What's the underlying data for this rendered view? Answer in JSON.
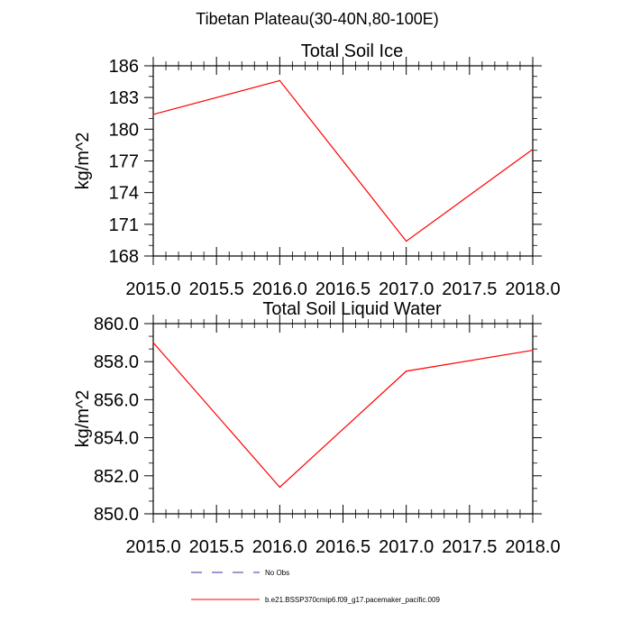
{
  "title": "Tibetan Plateau(30-40N,80-100E)",
  "chart_data": [
    {
      "type": "line",
      "title": "Total Soil Ice",
      "xlabel": "",
      "ylabel": "kg/m^2",
      "xlim": [
        2015.0,
        2018.0
      ],
      "ylim": [
        168,
        186
      ],
      "xticks": [
        2015.0,
        2015.5,
        2016.0,
        2016.5,
        2017.0,
        2017.5,
        2018.0
      ],
      "xtick_labels": [
        "2015.0",
        "2015.5",
        "2016.0",
        "2016.5",
        "2017.0",
        "2017.5",
        "2018.0"
      ],
      "yticks": [
        168,
        171,
        174,
        177,
        180,
        183,
        186
      ],
      "ytick_labels": [
        "168",
        "171",
        "174",
        "177",
        "180",
        "183",
        "186"
      ],
      "grid": false,
      "series": [
        {
          "name": "b.e21.BSSP370cmip6.f09_g17.pacemaker_pacific.009",
          "color": "#ff0000",
          "x": [
            2015.0,
            2016.0,
            2017.0,
            2018.0
          ],
          "values": [
            181.4,
            184.6,
            169.4,
            178.1
          ]
        }
      ]
    },
    {
      "type": "line",
      "title": "Total Soil Liquid Water",
      "xlabel": "",
      "ylabel": "kg/m^2",
      "xlim": [
        2015.0,
        2018.0
      ],
      "ylim": [
        850.0,
        860.0
      ],
      "xticks": [
        2015.0,
        2015.5,
        2016.0,
        2016.5,
        2017.0,
        2017.5,
        2018.0
      ],
      "xtick_labels": [
        "2015.0",
        "2015.5",
        "2016.0",
        "2016.5",
        "2017.0",
        "2017.5",
        "2018.0"
      ],
      "yticks": [
        850.0,
        852.0,
        854.0,
        856.0,
        858.0,
        860.0
      ],
      "ytick_labels": [
        "850.0",
        "852.0",
        "854.0",
        "856.0",
        "858.0",
        "860.0"
      ],
      "grid": false,
      "series": [
        {
          "name": "b.e21.BSSP370cmip6.f09_g17.pacemaker_pacific.009",
          "color": "#ff0000",
          "x": [
            2015.0,
            2016.0,
            2017.0,
            2018.0
          ],
          "values": [
            859.0,
            851.4,
            857.5,
            858.6
          ]
        }
      ]
    }
  ],
  "legend": {
    "placement": "bottom-center",
    "entries": [
      {
        "label": "No Obs",
        "color": "#3333aa",
        "style": "dashed"
      },
      {
        "label": "b.e21.BSSP370cmip6.f09_g17.pacemaker_pacific.009",
        "color": "#ff0000",
        "style": "solid"
      }
    ]
  }
}
